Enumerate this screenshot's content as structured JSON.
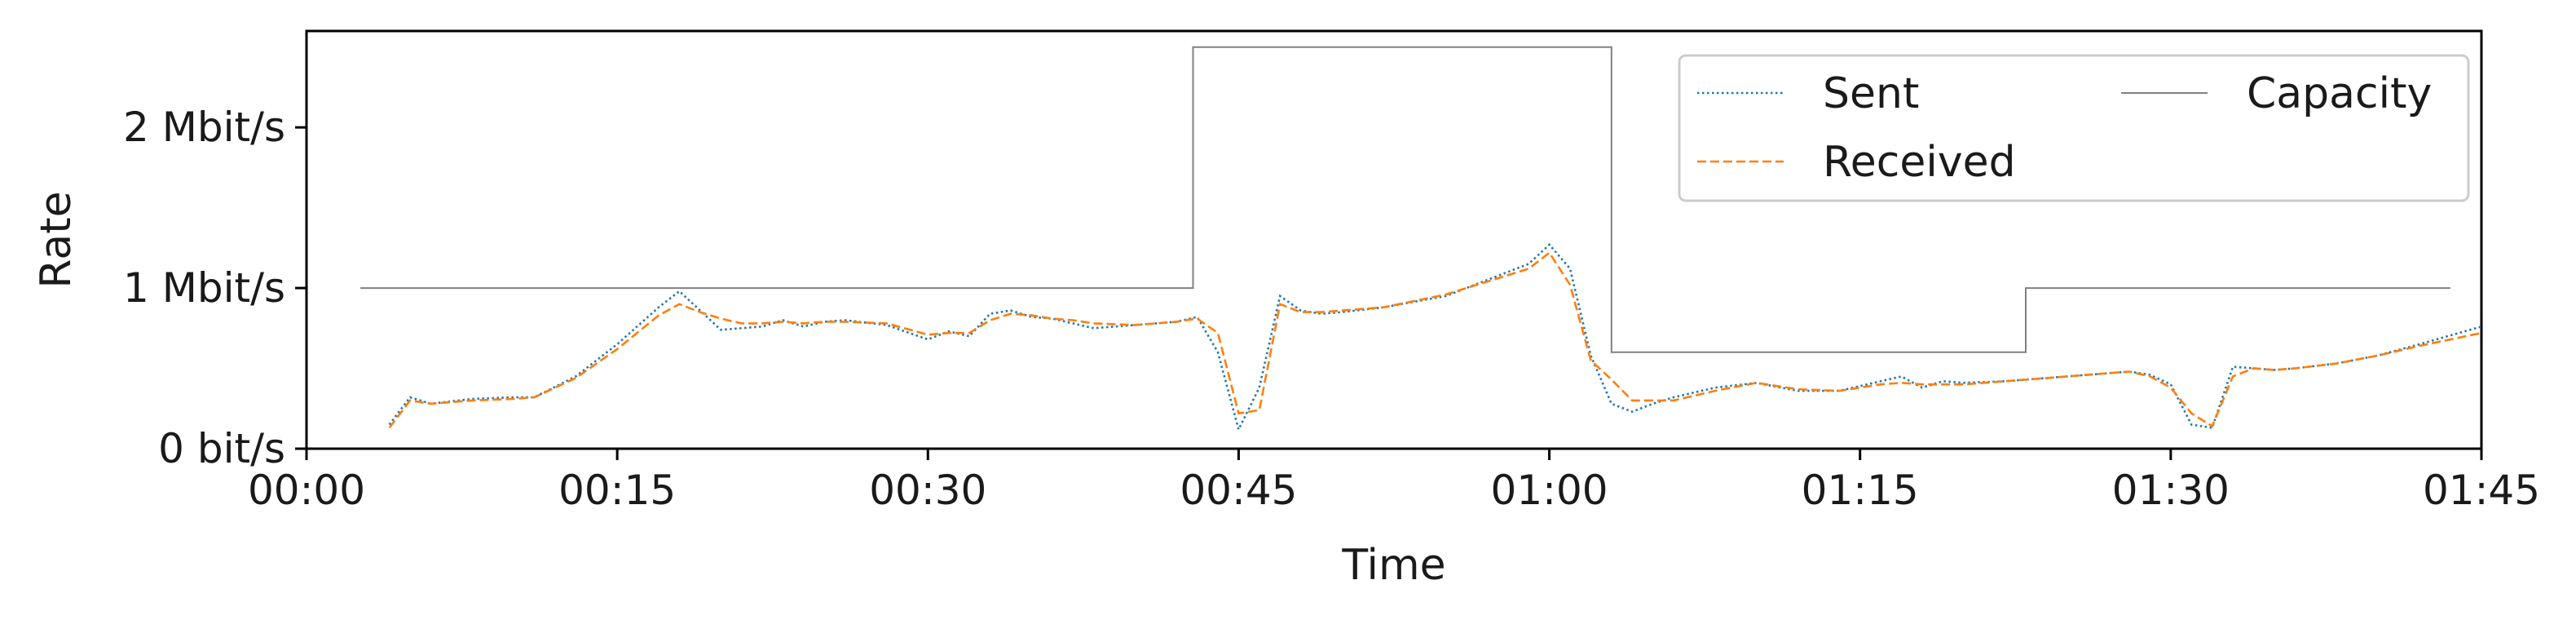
{
  "chart_data": {
    "type": "line",
    "xlabel": "Time",
    "ylabel": "Rate",
    "xlim": [
      0,
      105
    ],
    "ylim": [
      0,
      2.6
    ],
    "grid": false,
    "legend_placement": "top-right",
    "x_ticks": [
      {
        "value": 0,
        "label": "00:00"
      },
      {
        "value": 15,
        "label": "00:15"
      },
      {
        "value": 30,
        "label": "00:30"
      },
      {
        "value": 45,
        "label": "00:45"
      },
      {
        "value": 60,
        "label": "01:00"
      },
      {
        "value": 75,
        "label": "01:15"
      },
      {
        "value": 90,
        "label": "01:30"
      },
      {
        "value": 105,
        "label": "01:45"
      }
    ],
    "y_ticks": [
      {
        "value": 0,
        "label": "0 bit/s"
      },
      {
        "value": 1,
        "label": "1 Mbit/s"
      },
      {
        "value": 2,
        "label": "2 Mbit/s"
      }
    ],
    "series": [
      {
        "name": "Sent",
        "color": "#1f77b4",
        "style": "dotted",
        "x": [
          4,
          5,
          6,
          8,
          10,
          11,
          13,
          15,
          17,
          18,
          19,
          20,
          21,
          22,
          23,
          24,
          25,
          26,
          28,
          30,
          31,
          32,
          33,
          34,
          35,
          36,
          37,
          38,
          40,
          42,
          43,
          44,
          45,
          46,
          47,
          48,
          49,
          50,
          52,
          55,
          57,
          59,
          60,
          61,
          62,
          63,
          64,
          65,
          66,
          68,
          70,
          72,
          74,
          76,
          77,
          78,
          79,
          80,
          82,
          84,
          86,
          88,
          89,
          90,
          91,
          92,
          93,
          94,
          95,
          96,
          98,
          100,
          102,
          105
        ],
        "y": [
          0.15,
          0.32,
          0.28,
          0.31,
          0.32,
          0.32,
          0.45,
          0.65,
          0.88,
          0.98,
          0.86,
          0.74,
          0.75,
          0.76,
          0.8,
          0.76,
          0.79,
          0.8,
          0.77,
          0.68,
          0.73,
          0.7,
          0.84,
          0.86,
          0.82,
          0.81,
          0.78,
          0.75,
          0.77,
          0.79,
          0.82,
          0.6,
          0.12,
          0.38,
          0.95,
          0.86,
          0.84,
          0.85,
          0.88,
          0.95,
          1.05,
          1.15,
          1.27,
          1.12,
          0.58,
          0.28,
          0.23,
          0.28,
          0.32,
          0.38,
          0.41,
          0.36,
          0.36,
          0.42,
          0.45,
          0.38,
          0.42,
          0.41,
          0.42,
          0.44,
          0.46,
          0.48,
          0.46,
          0.4,
          0.15,
          0.13,
          0.51,
          0.5,
          0.49,
          0.5,
          0.53,
          0.58,
          0.65,
          0.76
        ]
      },
      {
        "name": "Received",
        "color": "#ff7f0e",
        "style": "dashed",
        "x": [
          4,
          5,
          6,
          8,
          10,
          11,
          13,
          15,
          17,
          18,
          19,
          20,
          21,
          22,
          23,
          24,
          25,
          26,
          28,
          30,
          31,
          32,
          33,
          34,
          35,
          36,
          37,
          38,
          40,
          42,
          43,
          44,
          45,
          46,
          47,
          48,
          49,
          50,
          52,
          55,
          57,
          59,
          60,
          61,
          62,
          63,
          64,
          65,
          66,
          68,
          70,
          72,
          74,
          76,
          77,
          78,
          79,
          80,
          82,
          84,
          86,
          88,
          89,
          90,
          91,
          92,
          93,
          94,
          95,
          96,
          98,
          100,
          102,
          105
        ],
        "y": [
          0.13,
          0.3,
          0.28,
          0.3,
          0.31,
          0.32,
          0.44,
          0.62,
          0.83,
          0.9,
          0.85,
          0.81,
          0.78,
          0.78,
          0.79,
          0.78,
          0.79,
          0.79,
          0.78,
          0.71,
          0.72,
          0.72,
          0.8,
          0.84,
          0.83,
          0.81,
          0.8,
          0.78,
          0.77,
          0.79,
          0.81,
          0.72,
          0.22,
          0.24,
          0.9,
          0.85,
          0.85,
          0.86,
          0.88,
          0.96,
          1.04,
          1.12,
          1.22,
          1.02,
          0.55,
          0.43,
          0.3,
          0.3,
          0.3,
          0.36,
          0.41,
          0.37,
          0.36,
          0.4,
          0.41,
          0.4,
          0.4,
          0.4,
          0.42,
          0.44,
          0.46,
          0.48,
          0.45,
          0.38,
          0.22,
          0.14,
          0.45,
          0.5,
          0.49,
          0.5,
          0.53,
          0.58,
          0.64,
          0.72
        ]
      },
      {
        "name": "Capacity",
        "color": "#808080",
        "style": "solid",
        "step": true,
        "x": [
          2.6,
          42.8,
          42.8,
          63,
          63,
          83,
          83,
          103.5
        ],
        "y": [
          1,
          1,
          2.5,
          2.5,
          0.6,
          0.6,
          1,
          1
        ]
      }
    ],
    "legend_columns": [
      [
        "Sent",
        "Received"
      ],
      [
        "Capacity"
      ]
    ]
  }
}
